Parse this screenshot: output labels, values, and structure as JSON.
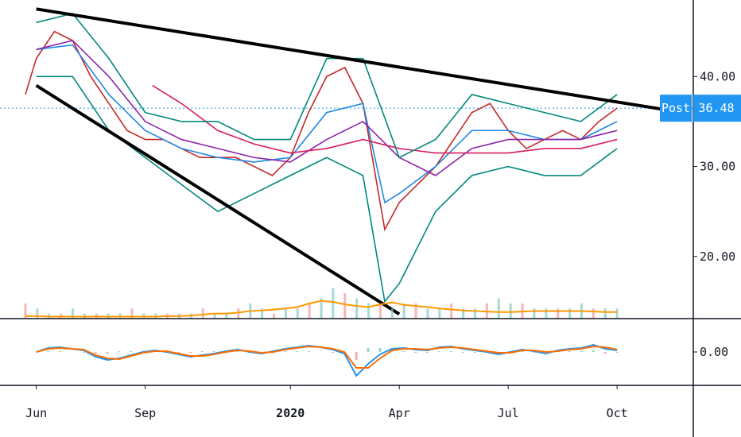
{
  "chart_data": {
    "type": "line",
    "xlabel": "",
    "ylabel": "",
    "x_ticks": [
      {
        "label": "Jun",
        "bold": false
      },
      {
        "label": "Sep",
        "bold": false
      },
      {
        "label": "2020",
        "bold": true
      },
      {
        "label": "Apr",
        "bold": false
      },
      {
        "label": "Jul",
        "bold": false
      },
      {
        "label": "Oct",
        "bold": false
      }
    ],
    "x_tick_positions": [
      1.0,
      4.0,
      8.0,
      11.0,
      14.0,
      17.0
    ],
    "x_range": [
      0,
      19.1
    ],
    "price_pane": {
      "y_ticks": [
        40,
        30,
        20
      ],
      "y_tick_labels": [
        "40.00",
        "30.00",
        "20.00"
      ],
      "ylim": [
        13.1,
        48.5
      ],
      "current_price": {
        "label": "Post",
        "value_label": "36.48",
        "value": 36.48
      },
      "series": [
        {
          "values": [
            [
              0.7,
              38
            ],
            [
              1.0,
              42
            ],
            [
              1.5,
              45
            ],
            [
              2.0,
              44
            ],
            [
              2.5,
              40
            ],
            [
              3.0,
              37
            ],
            [
              3.5,
              34
            ],
            [
              4.0,
              33
            ],
            [
              4.5,
              33
            ],
            [
              5.0,
              32
            ],
            [
              5.5,
              31
            ],
            [
              6.0,
              31
            ],
            [
              6.5,
              31
            ],
            [
              7.0,
              30
            ],
            [
              7.5,
              29
            ],
            [
              8.0,
              31
            ],
            [
              8.5,
              36
            ],
            [
              9.0,
              40
            ],
            [
              9.5,
              41
            ],
            [
              10.0,
              37
            ],
            [
              10.6,
              23
            ],
            [
              11.0,
              26
            ],
            [
              11.5,
              28
            ],
            [
              12.0,
              30
            ],
            [
              12.5,
              33
            ],
            [
              13.0,
              36
            ],
            [
              13.5,
              37
            ],
            [
              14.0,
              34
            ],
            [
              14.5,
              32
            ],
            [
              15.0,
              33
            ],
            [
              15.5,
              34
            ],
            [
              16.0,
              33
            ],
            [
              16.5,
              35
            ],
            [
              17.0,
              36.48
            ]
          ],
          "color": "#c62828",
          "label": ""
        },
        {
          "values": [
            [
              1.0,
              43
            ],
            [
              2.0,
              43.5
            ],
            [
              3.0,
              38
            ],
            [
              4.0,
              34
            ],
            [
              5.0,
              32
            ],
            [
              6.0,
              31
            ],
            [
              7.0,
              30.5
            ],
            [
              8.0,
              31
            ],
            [
              9.0,
              36
            ],
            [
              10.0,
              37
            ],
            [
              10.6,
              26
            ],
            [
              11.0,
              27
            ],
            [
              12.0,
              30
            ],
            [
              13.0,
              34
            ],
            [
              14.0,
              34
            ],
            [
              15.0,
              33
            ],
            [
              16.0,
              33
            ],
            [
              17.0,
              35
            ]
          ],
          "color": "#1e88e5",
          "label": ""
        },
        {
          "values": [
            [
              1.0,
              43
            ],
            [
              2.0,
              44
            ],
            [
              3.0,
              40
            ],
            [
              4.0,
              35
            ],
            [
              5.0,
              33
            ],
            [
              6.0,
              32
            ],
            [
              7.0,
              31
            ],
            [
              8.0,
              30.5
            ],
            [
              9.0,
              33
            ],
            [
              10.0,
              35
            ],
            [
              11.0,
              31
            ],
            [
              12.0,
              29
            ],
            [
              13.0,
              32
            ],
            [
              14.0,
              33
            ],
            [
              15.0,
              33
            ],
            [
              16.0,
              33
            ],
            [
              17.0,
              34
            ]
          ],
          "color": "#8e24aa",
          "label": ""
        },
        {
          "values": [
            [
              4.2,
              39
            ],
            [
              5.0,
              37
            ],
            [
              6.0,
              34
            ],
            [
              7.0,
              32.5
            ],
            [
              8.0,
              31.5
            ],
            [
              9.0,
              32
            ],
            [
              10.0,
              33
            ],
            [
              11.0,
              32
            ],
            [
              12.0,
              31.5
            ],
            [
              13.0,
              31.5
            ],
            [
              14.0,
              31.5
            ],
            [
              15.0,
              32
            ],
            [
              16.0,
              32
            ],
            [
              17.0,
              33
            ]
          ],
          "color": "#d81b60",
          "label": ""
        },
        {
          "values": [
            [
              1.0,
              46
            ],
            [
              2.0,
              47
            ],
            [
              3.0,
              42
            ],
            [
              4.0,
              36
            ],
            [
              5.0,
              35
            ],
            [
              6.0,
              35
            ],
            [
              7.0,
              33
            ],
            [
              8.0,
              33
            ],
            [
              9.0,
              42
            ],
            [
              10.0,
              42
            ],
            [
              11.0,
              31
            ],
            [
              12.0,
              33
            ],
            [
              13.0,
              38
            ],
            [
              14.0,
              37
            ],
            [
              15.0,
              36
            ],
            [
              16.0,
              35
            ],
            [
              17.0,
              38
            ]
          ],
          "color": "#00897b",
          "label": ""
        },
        {
          "values": [
            [
              1.0,
              40
            ],
            [
              2.0,
              40
            ],
            [
              3.0,
              34
            ],
            [
              4.0,
              31
            ],
            [
              5.0,
              28
            ],
            [
              6.0,
              25
            ],
            [
              7.0,
              27
            ],
            [
              8.0,
              29
            ],
            [
              9.0,
              31
            ],
            [
              10.0,
              29
            ],
            [
              10.6,
              15
            ],
            [
              11.0,
              17
            ],
            [
              12.0,
              25
            ],
            [
              13.0,
              29
            ],
            [
              14.0,
              30
            ],
            [
              15.0,
              29
            ],
            [
              16.0,
              29
            ],
            [
              17.0,
              32
            ]
          ],
          "color": "#00897b",
          "label": ""
        }
      ],
      "trendlines": [
        {
          "from": [
            1.0,
            47.5
          ],
          "to": [
            18.5,
            36.2
          ]
        },
        {
          "from": [
            1.0,
            39.0
          ],
          "to": [
            11.0,
            13.6
          ]
        }
      ]
    },
    "volume": {
      "values": [
        3,
        2,
        1,
        1,
        2,
        1,
        1,
        1,
        1,
        2,
        1,
        1,
        1,
        1,
        1,
        2,
        1,
        1,
        2,
        3,
        2,
        1,
        2,
        2,
        3,
        4,
        6,
        5,
        4,
        3,
        3,
        2,
        3,
        3,
        2,
        2,
        3,
        2,
        2,
        3,
        4,
        3,
        3,
        2,
        2,
        2,
        2,
        3,
        2,
        2,
        2
      ],
      "ma": [
        0.5,
        0.5,
        0.4,
        0.4,
        0.4,
        0.4,
        0.4,
        0.4,
        0.4,
        0.4,
        0.4,
        0.4,
        0.5,
        0.5,
        0.6,
        0.8,
        1,
        1,
        1.2,
        1.5,
        1.6,
        1.8,
        2,
        2.3,
        3,
        3.5,
        3.3,
        2.8,
        2.5,
        2.3,
        2.8,
        3.2,
        2.7,
        2.5,
        2.3,
        2,
        1.8,
        1.6,
        1.5,
        1.4,
        1.3,
        1.3,
        1.4,
        1.5,
        1.5,
        1.5,
        1.5,
        1.5,
        1.4,
        1.3,
        1.3
      ]
    },
    "macd_pane": {
      "y_ticks": [
        0
      ],
      "y_tick_labels": [
        "0.00"
      ],
      "macd": [
        0,
        0.5,
        0.6,
        0.4,
        0.2,
        -0.6,
        -1,
        -0.8,
        -0.4,
        0,
        0.2,
        0,
        -0.3,
        -0.6,
        -0.4,
        -0.2,
        0.1,
        0.3,
        0,
        -0.2,
        0.1,
        0.4,
        0.6,
        0.8,
        0.6,
        0.3,
        -0.2,
        -3,
        -1.5,
        -0.3,
        0.4,
        0.5,
        0.3,
        0.2,
        0.6,
        0.7,
        0.4,
        0.2,
        0,
        -0.3,
        0,
        0.3,
        0.1,
        -0.2,
        0.2,
        0.4,
        0.5,
        0.9,
        0.4,
        0.2
      ],
      "signal": [
        0,
        0.4,
        0.5,
        0.4,
        0.3,
        -0.4,
        -0.8,
        -0.9,
        -0.5,
        -0.1,
        0.1,
        0.1,
        -0.2,
        -0.5,
        -0.5,
        -0.3,
        0,
        0.2,
        0.1,
        -0.1,
        0,
        0.3,
        0.5,
        0.7,
        0.6,
        0.4,
        0,
        -2,
        -2,
        -0.8,
        0.2,
        0.4,
        0.4,
        0.3,
        0.5,
        0.6,
        0.5,
        0.3,
        0.1,
        -0.1,
        -0.1,
        0.2,
        0.2,
        0,
        0.1,
        0.3,
        0.4,
        0.7,
        0.6,
        0.3
      ]
    }
  }
}
